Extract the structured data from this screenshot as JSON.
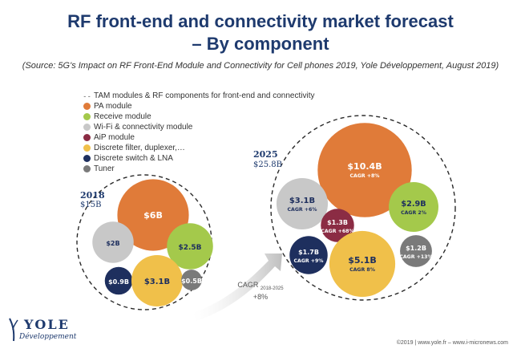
{
  "header": {
    "title_line1": "RF front-end and connectivity market forecast",
    "title_line2": "– By component",
    "source": "(Source: 5G's Impact on RF Front-End Module and Connectivity for Cell phones 2019, Yole Développement, August 2019)"
  },
  "legend": {
    "tam_label": "TAM modules & RF components for front-end and connectivity",
    "items": [
      {
        "label": "PA module",
        "color": "#e07b39"
      },
      {
        "label": "Receive module",
        "color": "#a4c94b"
      },
      {
        "label": "Wi-Fi & connectivity module",
        "color": "#c8c8c8"
      },
      {
        "label": "AiP module",
        "color": "#8b2c44"
      },
      {
        "label": "Discrete filter, duplexer,…",
        "color": "#f0c04a"
      },
      {
        "label": "Discrete switch & LNA",
        "color": "#1e2f5e"
      },
      {
        "label": "Tuner",
        "color": "#7a7a7a"
      }
    ]
  },
  "years": {
    "y2018": {
      "year": "2018",
      "total": "$15B"
    },
    "y2025": {
      "year": "2025",
      "total": "$25.8B"
    }
  },
  "cagr_arrow": {
    "label": "CAGR",
    "range": "2018-2025",
    "value": "+8%"
  },
  "chart_data": [
    {
      "type": "bubble",
      "title": "2018",
      "total": "$15B",
      "series": [
        {
          "name": "PA module",
          "value": 6,
          "label": "$6B",
          "cagr": ""
        },
        {
          "name": "Wi-Fi & connectivity module",
          "value": 2,
          "label": "$2B",
          "cagr": ""
        },
        {
          "name": "Receive module",
          "value": 2.5,
          "label": "$2.5B",
          "cagr": ""
        },
        {
          "name": "Discrete switch & LNA",
          "value": 0.9,
          "label": "$0.9B",
          "cagr": ""
        },
        {
          "name": "Discrete filter, duplexer,…",
          "value": 3.1,
          "label": "$3.1B",
          "cagr": ""
        },
        {
          "name": "Tuner",
          "value": 0.5,
          "label": "$0.5B",
          "cagr": ""
        }
      ]
    },
    {
      "type": "bubble",
      "title": "2025",
      "total": "$25.8B",
      "series": [
        {
          "name": "PA module",
          "value": 10.4,
          "label": "$10.4B",
          "cagr": "CAGR +8%"
        },
        {
          "name": "Wi-Fi & connectivity module",
          "value": 3.1,
          "label": "$3.1B",
          "cagr": "CAGR +6%"
        },
        {
          "name": "AiP module",
          "value": 1.3,
          "label": "$1.3B",
          "cagr": "CAGR +68%"
        },
        {
          "name": "Receive module",
          "value": 2.9,
          "label": "$2.9B",
          "cagr": "CAGR 2%"
        },
        {
          "name": "Discrete switch & LNA",
          "value": 1.7,
          "label": "$1.7B",
          "cagr": "CAGR +9%"
        },
        {
          "name": "Discrete filter, duplexer,…",
          "value": 5.1,
          "label": "$5.1B",
          "cagr": "CAGR 8%"
        },
        {
          "name": "Tuner",
          "value": 1.2,
          "label": "$1.2B",
          "cagr": "CAGR +13%"
        }
      ]
    }
  ],
  "logo": {
    "name": "YOLE",
    "sub": "Développement"
  },
  "footer": {
    "text": "©2019 | www.yole.fr – www.i-micronews.com"
  }
}
